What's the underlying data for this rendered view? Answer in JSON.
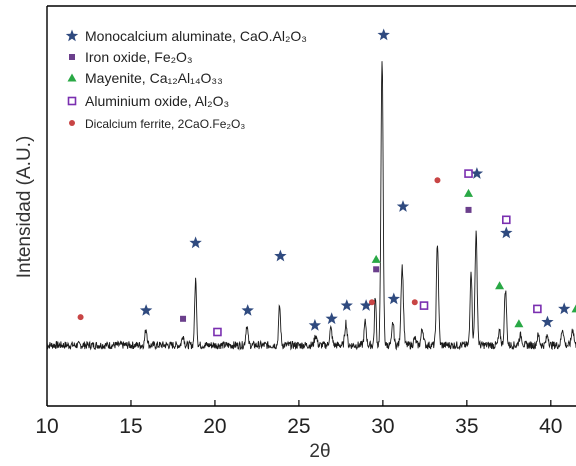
{
  "chart_data": {
    "type": "line",
    "title": "",
    "xlabel": "2θ",
    "ylabel": "Intensidad (A.U.)",
    "xlim": [
      10,
      41.5
    ],
    "xticks": [
      10,
      15,
      20,
      25,
      30,
      35,
      40
    ],
    "y_ticks_shown": false,
    "grid": false,
    "legend_position": "top-left",
    "colors": {
      "pattern": "#1a1a1a",
      "monocalcium": "#2f4a7f",
      "iron_oxide": "#6b3f8c",
      "mayenite": "#29a845",
      "aluminium_oxide": "#7a2fb0",
      "dicalcium": "#c84545"
    },
    "legend": [
      {
        "key": "monocalcium",
        "marker": "star",
        "label": "Monocalcium aluminate, CaO.Al₂O₃"
      },
      {
        "key": "iron_oxide",
        "marker": "filled-square",
        "label": "Iron oxide, Fe₂O₃"
      },
      {
        "key": "mayenite",
        "marker": "triangle",
        "label": "Mayenite, Ca₁₂Al₁₄O₃₃"
      },
      {
        "key": "aluminium_oxide",
        "marker": "open-square",
        "label": "Aluminium oxide, Al₂O₃"
      },
      {
        "key": "dicalcium",
        "marker": "circle",
        "label": "Dicalcium ferrite, 2CaO.Fe₂O₃"
      }
    ],
    "baseline": 0.06,
    "noise_amplitude": 0.012,
    "peaks": [
      {
        "x": 15.9,
        "h": 0.05,
        "w": 0.09
      },
      {
        "x": 18.1,
        "h": 0.03,
        "w": 0.09
      },
      {
        "x": 18.85,
        "h": 0.2,
        "w": 0.08
      },
      {
        "x": 21.9,
        "h": 0.06,
        "w": 0.09
      },
      {
        "x": 23.85,
        "h": 0.12,
        "w": 0.08
      },
      {
        "x": 26.0,
        "h": 0.03,
        "w": 0.1
      },
      {
        "x": 26.9,
        "h": 0.05,
        "w": 0.1
      },
      {
        "x": 27.8,
        "h": 0.07,
        "w": 0.09
      },
      {
        "x": 28.95,
        "h": 0.07,
        "w": 0.09
      },
      {
        "x": 29.55,
        "h": 0.15,
        "w": 0.07
      },
      {
        "x": 29.95,
        "h": 0.87,
        "w": 0.09
      },
      {
        "x": 30.6,
        "h": 0.07,
        "w": 0.08
      },
      {
        "x": 31.15,
        "h": 0.24,
        "w": 0.1
      },
      {
        "x": 31.9,
        "h": 0.02,
        "w": 0.1
      },
      {
        "x": 32.35,
        "h": 0.05,
        "w": 0.1
      },
      {
        "x": 33.25,
        "h": 0.31,
        "w": 0.09
      },
      {
        "x": 35.25,
        "h": 0.23,
        "w": 0.08
      },
      {
        "x": 35.55,
        "h": 0.34,
        "w": 0.09
      },
      {
        "x": 36.95,
        "h": 0.04,
        "w": 0.09
      },
      {
        "x": 37.3,
        "h": 0.17,
        "w": 0.09
      },
      {
        "x": 38.2,
        "h": 0.03,
        "w": 0.12
      },
      {
        "x": 39.25,
        "h": 0.03,
        "w": 0.1
      },
      {
        "x": 39.8,
        "h": 0.03,
        "w": 0.1
      },
      {
        "x": 40.7,
        "h": 0.05,
        "w": 0.1
      },
      {
        "x": 41.3,
        "h": 0.05,
        "w": 0.1
      }
    ],
    "markers": [
      {
        "series": "monocalcium",
        "x": 15.9,
        "y": 0.165
      },
      {
        "series": "monocalcium",
        "x": 18.85,
        "y": 0.37
      },
      {
        "series": "monocalcium",
        "x": 21.95,
        "y": 0.165
      },
      {
        "series": "monocalcium",
        "x": 23.9,
        "y": 0.33
      },
      {
        "series": "monocalcium",
        "x": 25.95,
        "y": 0.12
      },
      {
        "series": "monocalcium",
        "x": 26.95,
        "y": 0.14
      },
      {
        "series": "monocalcium",
        "x": 27.85,
        "y": 0.18
      },
      {
        "series": "monocalcium",
        "x": 29.0,
        "y": 0.18
      },
      {
        "series": "monocalcium",
        "x": 30.05,
        "y": 1.0
      },
      {
        "series": "monocalcium",
        "x": 30.65,
        "y": 0.2
      },
      {
        "series": "monocalcium",
        "x": 31.2,
        "y": 0.48
      },
      {
        "series": "monocalcium",
        "x": 35.6,
        "y": 0.58
      },
      {
        "series": "monocalcium",
        "x": 37.35,
        "y": 0.4
      },
      {
        "series": "monocalcium",
        "x": 39.8,
        "y": 0.13
      },
      {
        "series": "monocalcium",
        "x": 40.8,
        "y": 0.17
      },
      {
        "series": "iron_oxide",
        "x": 18.1,
        "y": 0.14
      },
      {
        "series": "iron_oxide",
        "x": 29.6,
        "y": 0.29
      },
      {
        "series": "iron_oxide",
        "x": 35.1,
        "y": 0.47
      },
      {
        "series": "mayenite",
        "x": 29.6,
        "y": 0.32
      },
      {
        "series": "mayenite",
        "x": 35.1,
        "y": 0.52
      },
      {
        "series": "mayenite",
        "x": 36.95,
        "y": 0.24
      },
      {
        "series": "mayenite",
        "x": 38.1,
        "y": 0.125
      },
      {
        "series": "mayenite",
        "x": 41.5,
        "y": 0.17
      },
      {
        "series": "aluminium_oxide",
        "x": 20.15,
        "y": 0.1
      },
      {
        "series": "aluminium_oxide",
        "x": 32.45,
        "y": 0.18
      },
      {
        "series": "aluminium_oxide",
        "x": 35.1,
        "y": 0.58
      },
      {
        "series": "aluminium_oxide",
        "x": 37.35,
        "y": 0.44
      },
      {
        "series": "aluminium_oxide",
        "x": 39.2,
        "y": 0.17
      },
      {
        "series": "dicalcium",
        "x": 12.0,
        "y": 0.145
      },
      {
        "series": "dicalcium",
        "x": 29.35,
        "y": 0.19
      },
      {
        "series": "dicalcium",
        "x": 31.9,
        "y": 0.19
      },
      {
        "series": "dicalcium",
        "x": 33.25,
        "y": 0.56
      }
    ]
  }
}
